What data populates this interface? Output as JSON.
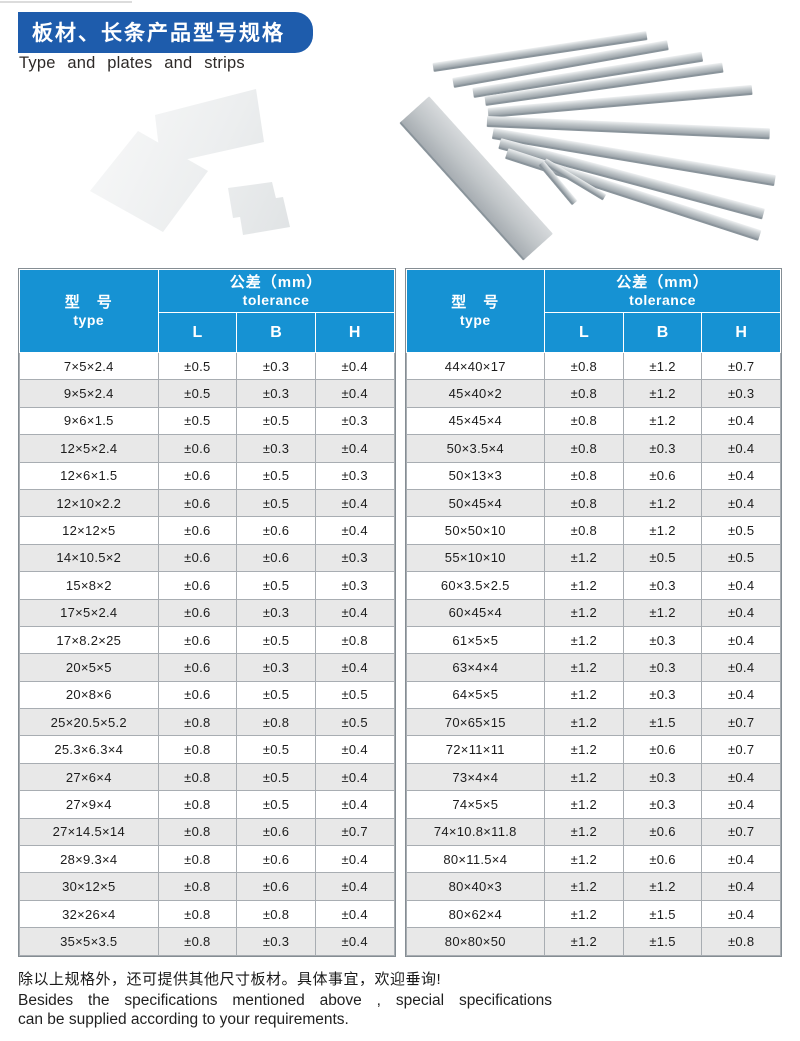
{
  "page": {
    "title_zh": "板材、长条产品型号规格",
    "subtitle_en": "Type and plates and strips"
  },
  "table_header": {
    "type_zh": "型　号",
    "type_en": "type",
    "tolerance_zh": "公差（mm）",
    "tolerance_en": "tolerance",
    "col_l": "L",
    "col_b": "B",
    "col_h": "H"
  },
  "left_table": {
    "rows": [
      {
        "type": "7×5×2.4",
        "L": "±0.5",
        "B": "±0.3",
        "H": "±0.4"
      },
      {
        "type": "9×5×2.4",
        "L": "±0.5",
        "B": "±0.3",
        "H": "±0.4"
      },
      {
        "type": "9×6×1.5",
        "L": "±0.5",
        "B": "±0.5",
        "H": "±0.3"
      },
      {
        "type": "12×5×2.4",
        "L": "±0.6",
        "B": "±0.3",
        "H": "±0.4"
      },
      {
        "type": "12×6×1.5",
        "L": "±0.6",
        "B": "±0.5",
        "H": "±0.3"
      },
      {
        "type": "12×10×2.2",
        "L": "±0.6",
        "B": "±0.5",
        "H": "±0.4"
      },
      {
        "type": "12×12×5",
        "L": "±0.6",
        "B": "±0.6",
        "H": "±0.4"
      },
      {
        "type": "14×10.5×2",
        "L": "±0.6",
        "B": "±0.6",
        "H": "±0.3"
      },
      {
        "type": "15×8×2",
        "L": "±0.6",
        "B": "±0.5",
        "H": "±0.3"
      },
      {
        "type": "17×5×2.4",
        "L": "±0.6",
        "B": "±0.3",
        "H": "±0.4"
      },
      {
        "type": "17×8.2×25",
        "L": "±0.6",
        "B": "±0.5",
        "H": "±0.8"
      },
      {
        "type": "20×5×5",
        "L": "±0.6",
        "B": "±0.3",
        "H": "±0.4"
      },
      {
        "type": "20×8×6",
        "L": "±0.6",
        "B": "±0.5",
        "H": "±0.5"
      },
      {
        "type": "25×20.5×5.2",
        "L": "±0.8",
        "B": "±0.8",
        "H": "±0.5"
      },
      {
        "type": "25.3×6.3×4",
        "L": "±0.8",
        "B": "±0.5",
        "H": "±0.4"
      },
      {
        "type": "27×6×4",
        "L": "±0.8",
        "B": "±0.5",
        "H": "±0.4"
      },
      {
        "type": "27×9×4",
        "L": "±0.8",
        "B": "±0.5",
        "H": "±0.4"
      },
      {
        "type": "27×14.5×14",
        "L": "±0.8",
        "B": "±0.6",
        "H": "±0.7"
      },
      {
        "type": "28×9.3×4",
        "L": "±0.8",
        "B": "±0.6",
        "H": "±0.4"
      },
      {
        "type": "30×12×5",
        "L": "±0.8",
        "B": "±0.6",
        "H": "±0.4"
      },
      {
        "type": "32×26×4",
        "L": "±0.8",
        "B": "±0.8",
        "H": "±0.4"
      },
      {
        "type": "35×5×3.5",
        "L": "±0.8",
        "B": "±0.3",
        "H": "±0.4"
      }
    ]
  },
  "right_table": {
    "rows": [
      {
        "type": "44×40×17",
        "L": "±0.8",
        "B": "±1.2",
        "H": "±0.7"
      },
      {
        "type": "45×40×2",
        "L": "±0.8",
        "B": "±1.2",
        "H": "±0.3"
      },
      {
        "type": "45×45×4",
        "L": "±0.8",
        "B": "±1.2",
        "H": "±0.4"
      },
      {
        "type": "50×3.5×4",
        "L": "±0.8",
        "B": "±0.3",
        "H": "±0.4"
      },
      {
        "type": "50×13×3",
        "L": "±0.8",
        "B": "±0.6",
        "H": "±0.4"
      },
      {
        "type": "50×45×4",
        "L": "±0.8",
        "B": "±1.2",
        "H": "±0.4"
      },
      {
        "type": "50×50×10",
        "L": "±0.8",
        "B": "±1.2",
        "H": "±0.5"
      },
      {
        "type": "55×10×10",
        "L": "±1.2",
        "B": "±0.5",
        "H": "±0.5"
      },
      {
        "type": "60×3.5×2.5",
        "L": "±1.2",
        "B": "±0.3",
        "H": "±0.4"
      },
      {
        "type": "60×45×4",
        "L": "±1.2",
        "B": "±1.2",
        "H": "±0.4"
      },
      {
        "type": "61×5×5",
        "L": "±1.2",
        "B": "±0.3",
        "H": "±0.4"
      },
      {
        "type": "63×4×4",
        "L": "±1.2",
        "B": "±0.3",
        "H": "±0.4"
      },
      {
        "type": "64×5×5",
        "L": "±1.2",
        "B": "±0.3",
        "H": "±0.4"
      },
      {
        "type": "70×65×15",
        "L": "±1.2",
        "B": "±1.5",
        "H": "±0.7"
      },
      {
        "type": "72×11×11",
        "L": "±1.2",
        "B": "±0.6",
        "H": "±0.7"
      },
      {
        "type": "73×4×4",
        "L": "±1.2",
        "B": "±0.3",
        "H": "±0.4"
      },
      {
        "type": "74×5×5",
        "L": "±1.2",
        "B": "±0.3",
        "H": "±0.4"
      },
      {
        "type": "74×10.8×11.8",
        "L": "±1.2",
        "B": "±0.6",
        "H": "±0.7"
      },
      {
        "type": "80×11.5×4",
        "L": "±1.2",
        "B": "±0.6",
        "H": "±0.4"
      },
      {
        "type": "80×40×3",
        "L": "±1.2",
        "B": "±1.2",
        "H": "±0.4"
      },
      {
        "type": "80×62×4",
        "L": "±1.2",
        "B": "±1.5",
        "H": "±0.4"
      },
      {
        "type": "80×80×50",
        "L": "±1.2",
        "B": "±1.5",
        "H": "±0.8"
      }
    ]
  },
  "footer": {
    "zh": "除以上规格外，还可提供其他尺寸板材。具体事宜，欢迎垂询!",
    "en_line1": "Besides the specifications mentioned above , special specifications",
    "en_line2": "can be supplied according to your requirements."
  },
  "colors": {
    "badge_blue": "#1e5cac",
    "header_blue": "#1692d3",
    "row_stripe": "#e8e8e8",
    "border_gray": "#a8adb2"
  }
}
